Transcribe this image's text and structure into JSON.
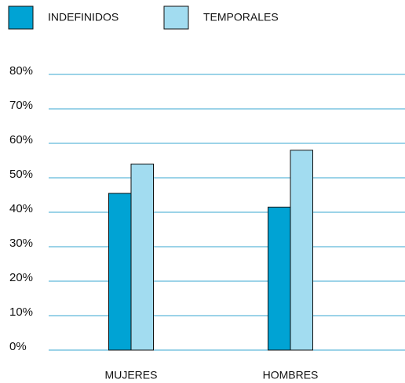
{
  "chart_data": {
    "type": "bar",
    "categories": [
      "MUJERES",
      "HOMBRES"
    ],
    "series": [
      {
        "name": "INDEFINIDOS",
        "color": "#00a3d4",
        "values": [
          45.5,
          41.5
        ]
      },
      {
        "name": "TEMPORALES",
        "color": "#a2dcf0",
        "values": [
          54,
          58
        ]
      }
    ],
    "ylim": [
      0,
      80
    ],
    "yticks": [
      {
        "value": 0,
        "label": "0%"
      },
      {
        "value": 10,
        "label": "10%"
      },
      {
        "value": 20,
        "label": "20%"
      },
      {
        "value": 30,
        "label": "30%"
      },
      {
        "value": 40,
        "label": "40%"
      },
      {
        "value": 50,
        "label": "50%"
      },
      {
        "value": 60,
        "label": "60%"
      },
      {
        "value": 70,
        "label": "70%"
      },
      {
        "value": 80,
        "label": "80%"
      }
    ],
    "grid": true,
    "legend": "top"
  }
}
